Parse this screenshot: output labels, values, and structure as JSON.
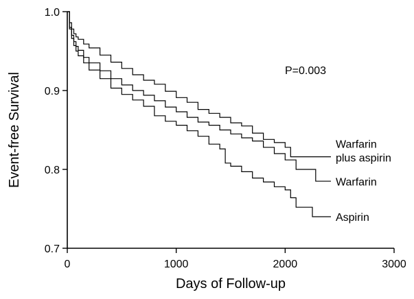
{
  "chart_data": {
    "type": "line",
    "title": "",
    "xlabel": "Days of Follow-up",
    "ylabel": "Event-free Survival",
    "xlim": [
      0,
      3000
    ],
    "ylim": [
      0.7,
      1.0
    ],
    "xticks": [
      0,
      1000,
      2000,
      3000
    ],
    "xtick_labels": [
      "0",
      "1000",
      "2000",
      "3000"
    ],
    "yticks": [
      0.7,
      0.8,
      0.9,
      1.0
    ],
    "ytick_labels": [
      "0.7",
      "0.8",
      "0.9",
      "1.0"
    ],
    "grid": false,
    "legend": "none",
    "annotation": "P=0.003",
    "series": [
      {
        "name": "Warfarin plus aspirin",
        "label_lines": [
          "Warfarin",
          "plus aspirin"
        ],
        "x": [
          0,
          20,
          40,
          60,
          80,
          100,
          150,
          200,
          300,
          400,
          500,
          600,
          700,
          800,
          900,
          1000,
          1100,
          1200,
          1300,
          1400,
          1500,
          1600,
          1700,
          1800,
          1900,
          2000,
          2050,
          2100,
          2200,
          2300,
          2420
        ],
        "y": [
          1.0,
          0.986,
          0.978,
          0.972,
          0.968,
          0.965,
          0.959,
          0.954,
          0.945,
          0.936,
          0.928,
          0.92,
          0.913,
          0.908,
          0.899,
          0.891,
          0.885,
          0.876,
          0.871,
          0.866,
          0.859,
          0.855,
          0.846,
          0.838,
          0.834,
          0.828,
          0.816,
          0.816,
          0.816,
          0.816,
          0.816
        ]
      },
      {
        "name": "Warfarin",
        "label_lines": [
          "Warfarin"
        ],
        "x": [
          0,
          20,
          40,
          60,
          80,
          100,
          150,
          200,
          300,
          400,
          500,
          600,
          700,
          800,
          900,
          1000,
          1100,
          1200,
          1300,
          1400,
          1500,
          1600,
          1700,
          1800,
          1900,
          2000,
          2100,
          2200,
          2280,
          2300,
          2420
        ],
        "y": [
          1.0,
          0.98,
          0.97,
          0.962,
          0.956,
          0.951,
          0.942,
          0.935,
          0.925,
          0.915,
          0.907,
          0.9,
          0.894,
          0.887,
          0.879,
          0.873,
          0.866,
          0.86,
          0.856,
          0.85,
          0.845,
          0.84,
          0.836,
          0.828,
          0.82,
          0.812,
          0.8,
          0.8,
          0.785,
          0.785,
          0.785
        ]
      },
      {
        "name": "Aspirin",
        "label_lines": [
          "Aspirin"
        ],
        "x": [
          0,
          20,
          40,
          60,
          80,
          100,
          150,
          200,
          300,
          400,
          500,
          600,
          700,
          800,
          900,
          1000,
          1100,
          1200,
          1300,
          1400,
          1450,
          1500,
          1600,
          1700,
          1800,
          1900,
          2000,
          2050,
          2100,
          2250,
          2420
        ],
        "y": [
          1.0,
          0.978,
          0.966,
          0.957,
          0.95,
          0.944,
          0.935,
          0.926,
          0.915,
          0.903,
          0.895,
          0.888,
          0.88,
          0.868,
          0.861,
          0.856,
          0.849,
          0.842,
          0.832,
          0.826,
          0.808,
          0.804,
          0.797,
          0.789,
          0.784,
          0.778,
          0.774,
          0.764,
          0.752,
          0.74,
          0.74
        ]
      }
    ]
  }
}
